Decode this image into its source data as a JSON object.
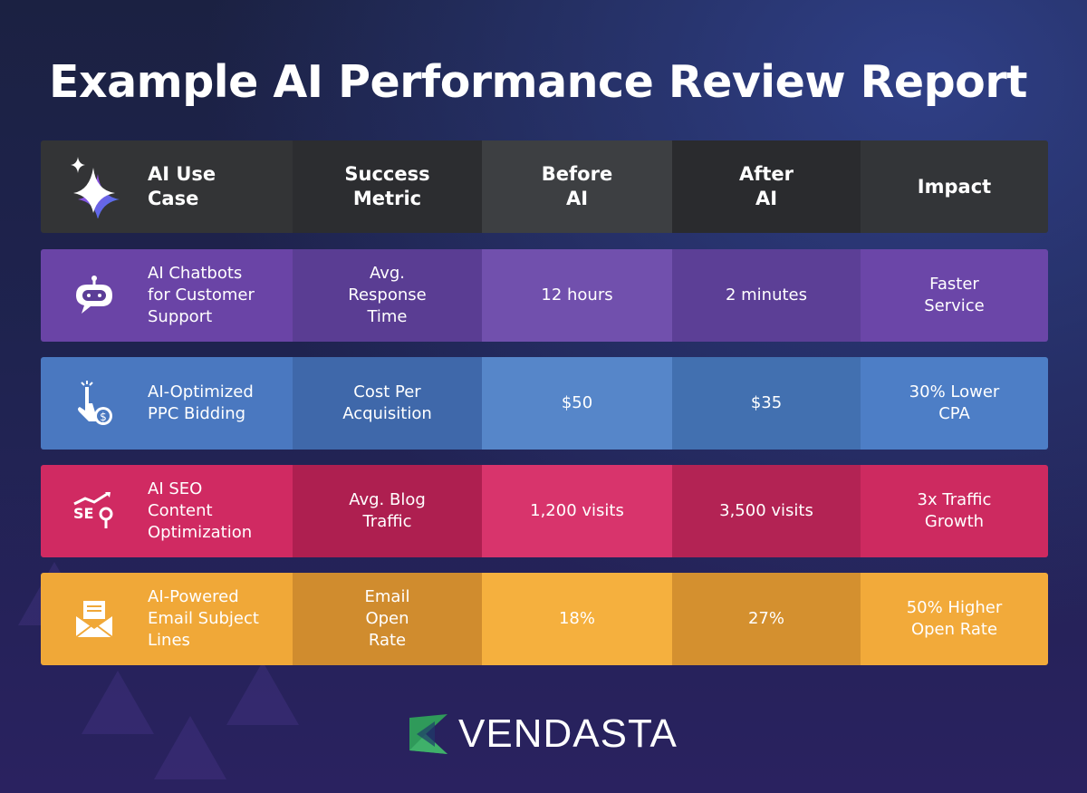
{
  "title": "Example AI Performance Review Report",
  "headers": [
    "AI Use\nCase",
    "Success\nMetric",
    "Before\nAI",
    "After\nAI",
    "Impact"
  ],
  "header_icon": "sparkle-icon",
  "rows": [
    {
      "use_case": "AI Chatbots\nfor Customer\nSupport",
      "metric": "Avg.\nResponse\nTime",
      "before": "12 hours",
      "after": "2 minutes",
      "impact": "Faster\nService",
      "icon": "chatbot-icon",
      "colors": [
        "#6a44a6",
        "#5a3d93",
        "#7150ad",
        "#5c3f96",
        "#6b46a8"
      ]
    },
    {
      "use_case": "AI-Optimized\nPPC Bidding",
      "metric": "Cost Per\nAcquisition",
      "before": "$50",
      "after": "$35",
      "impact": "30% Lower\nCPA",
      "icon": "click-dollar-icon",
      "colors": [
        "#4a78c0",
        "#3f68aa",
        "#5686c9",
        "#4270b0",
        "#4d7ec6"
      ]
    },
    {
      "use_case": "AI SEO\nContent\nOptimization",
      "metric": "Avg. Blog\nTraffic",
      "before": "1,200 visits",
      "after": "3,500 visits",
      "impact": "3x Traffic\nGrowth",
      "icon": "seo-icon",
      "colors": [
        "#d02a62",
        "#ae1f50",
        "#d8346c",
        "#b32354",
        "#cd2a60"
      ]
    },
    {
      "use_case": "AI-Powered\nEmail Subject\nLines",
      "metric": "Email\nOpen\nRate",
      "before": "18%",
      "after": "27%",
      "impact": "50% Higher\nOpen Rate",
      "icon": "email-icon",
      "colors": [
        "#f0a838",
        "#d08c2e",
        "#f5b03e",
        "#d4902f",
        "#f2aa3a"
      ]
    }
  ],
  "header_colors": [
    "#333436",
    "#2c2d30",
    "#3d3f42",
    "#2a2b2e",
    "#333538"
  ],
  "brand": {
    "name": "VENDASTA",
    "color": "#2f9a5a"
  }
}
